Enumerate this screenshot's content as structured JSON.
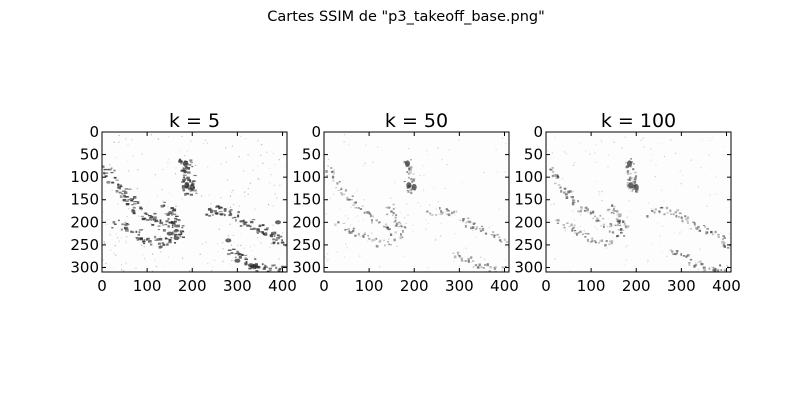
{
  "figure": {
    "title": "Cartes SSIM de \"p3_takeoff_base.png\"",
    "colormap": "gray",
    "background": "#ffffff"
  },
  "panels": [
    {
      "title": "k = 5",
      "density": 1.0,
      "xticks": [
        "0",
        "100",
        "200",
        "300",
        "400"
      ],
      "yticks": [
        "0",
        "50",
        "100",
        "150",
        "200",
        "250",
        "300"
      ]
    },
    {
      "title": "k = 50",
      "density": 0.45,
      "xticks": [
        "0",
        "100",
        "200",
        "300",
        "400"
      ],
      "yticks": [
        "0",
        "50",
        "100",
        "150",
        "200",
        "250",
        "300"
      ]
    },
    {
      "title": "k = 100",
      "density": 0.55,
      "xticks": [
        "0",
        "100",
        "200",
        "300",
        "400"
      ],
      "yticks": [
        "0",
        "50",
        "100",
        "150",
        "200",
        "250",
        "300"
      ]
    }
  ],
  "axes": {
    "xlim": [
      0,
      410
    ],
    "ylim": [
      310,
      0
    ],
    "xtick_values": [
      0,
      100,
      200,
      300,
      400
    ],
    "ytick_values": [
      0,
      50,
      100,
      150,
      200,
      250,
      300
    ]
  }
}
